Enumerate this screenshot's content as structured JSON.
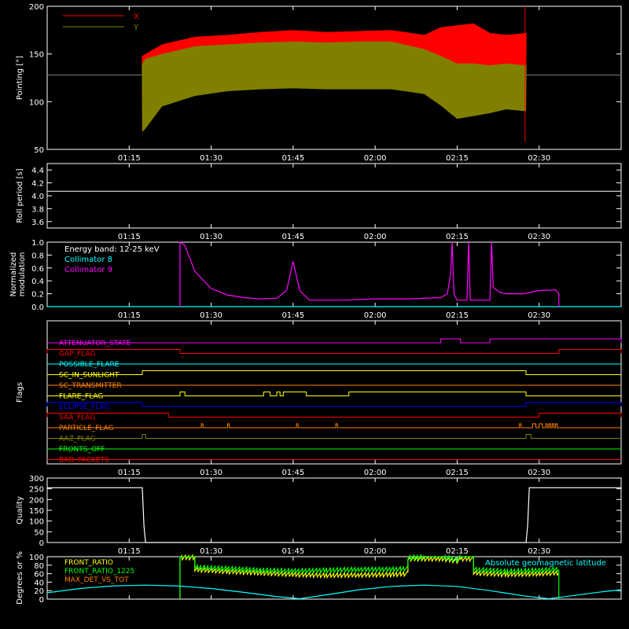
{
  "colors": {
    "background": "#000000",
    "foreground": "#ffffff",
    "red": "#ff0000",
    "olive": "#808000",
    "cyan": "#00ffff",
    "magenta": "#ff00ff",
    "yellow": "#ffff00",
    "orange": "#ff8000",
    "blue": "#0000ff",
    "green": "#00ff00",
    "gray": "#808080"
  },
  "time_axis": {
    "start_hours": 1.0,
    "end_hours": 2.75,
    "tick_labels": [
      "01:15",
      "01:30",
      "01:45",
      "02:00",
      "02:15",
      "02:30"
    ],
    "tick_hours": [
      1.25,
      1.5,
      1.75,
      2.0,
      2.25,
      2.5
    ]
  },
  "chart_data": [
    {
      "type": "line",
      "ylabel": "Pointing [°]",
      "ylim": [
        50,
        200
      ],
      "yticks": [
        50,
        100,
        150,
        200
      ],
      "legend": "top-left",
      "baseline": 128,
      "series": [
        {
          "name": "X",
          "color": "#ff0000",
          "x": [
            1.29,
            1.3,
            1.35,
            1.45,
            1.55,
            1.65,
            1.75,
            1.85,
            1.95,
            2.05,
            2.15,
            2.2,
            2.25,
            2.3,
            2.35,
            2.4,
            2.46
          ],
          "upper": [
            148,
            150,
            160,
            168,
            170,
            173,
            175,
            173,
            174,
            175,
            170,
            178,
            180,
            182,
            172,
            170,
            172
          ],
          "lower": [
            70,
            75,
            98,
            108,
            113,
            116,
            117,
            116,
            116,
            116,
            110,
            100,
            88,
            90,
            90,
            95,
            92
          ]
        },
        {
          "name": "Y",
          "color": "#808000",
          "x": [
            1.29,
            1.3,
            1.35,
            1.45,
            1.55,
            1.65,
            1.75,
            1.85,
            1.95,
            2.05,
            2.15,
            2.2,
            2.25,
            2.3,
            2.35,
            2.4,
            2.46
          ],
          "upper": [
            140,
            145,
            150,
            158,
            160,
            162,
            163,
            162,
            163,
            163,
            155,
            148,
            140,
            140,
            138,
            140,
            138
          ],
          "lower": [
            68,
            72,
            95,
            106,
            111,
            113,
            114,
            113,
            113,
            113,
            108,
            96,
            82,
            85,
            88,
            92,
            90
          ]
        }
      ]
    },
    {
      "type": "line",
      "ylabel": "Roll period [s]",
      "ylim": [
        3.5,
        4.5
      ],
      "yticks": [
        3.6,
        3.8,
        4.0,
        4.2,
        4.4
      ],
      "series": [
        {
          "name": "",
          "color": "#ffffff",
          "x": [
            1.0,
            2.75
          ],
          "y": [
            4.07,
            4.07
          ]
        }
      ]
    },
    {
      "type": "line",
      "ylabel": "Normalized modulation",
      "ylim": [
        0.0,
        1.0
      ],
      "yticks": [
        0.0,
        0.2,
        0.4,
        0.6,
        0.8,
        1.0
      ],
      "legend": "top-left",
      "annotation": "Energy band: 12-25 keV",
      "series": [
        {
          "name": "Collimator 8",
          "color": "#00ffff",
          "x": [
            1.0,
            2.75
          ],
          "y": [
            0.0,
            0.0
          ]
        },
        {
          "name": "Collimator 9",
          "color": "#ff00ff",
          "x": [
            1.405,
            1.405,
            1.42,
            1.45,
            1.5,
            1.55,
            1.6,
            1.65,
            1.7,
            1.73,
            1.75,
            1.77,
            1.8,
            1.9,
            2.0,
            2.1,
            2.2,
            2.22,
            2.23,
            2.235,
            2.24,
            2.25,
            2.28,
            2.285,
            2.29,
            2.3,
            2.35,
            2.355,
            2.36,
            2.38,
            2.4,
            2.45,
            2.5,
            2.55,
            2.56,
            2.56
          ],
          "y": [
            0.0,
            1.0,
            0.95,
            0.55,
            0.28,
            0.18,
            0.14,
            0.12,
            0.13,
            0.25,
            0.7,
            0.25,
            0.1,
            0.1,
            0.12,
            0.12,
            0.14,
            0.2,
            0.5,
            1.0,
            0.2,
            0.1,
            0.1,
            1.0,
            0.1,
            0.1,
            0.1,
            1.0,
            0.3,
            0.22,
            0.2,
            0.2,
            0.25,
            0.26,
            0.2,
            0.0
          ]
        }
      ]
    },
    {
      "type": "line",
      "ylabel": "Flags",
      "flags": [
        {
          "name": "ATTENUATOR_STATE",
          "color": "#ff00ff",
          "on": [
            [
              2.2,
              2.26
            ],
            [
              2.35,
              2.75
            ]
          ]
        },
        {
          "name": "GAP_FLAG",
          "color": "#ff0000",
          "on": [
            [
              1.0,
              1.405
            ],
            [
              2.56,
              2.75
            ]
          ]
        },
        {
          "name": "POSSIBLE_FLARE",
          "color": "#00ffff",
          "on": []
        },
        {
          "name": "SC_IN_SUNLIGHT",
          "color": "#ffff00",
          "on": [
            [
              1.29,
              2.46
            ]
          ]
        },
        {
          "name": "SC_TRANSMITTER",
          "color": "#ff8000",
          "on": []
        },
        {
          "name": "FLARE_FLAG",
          "color": "#ffff00",
          "on": [
            [
              1.405,
              1.42
            ],
            [
              1.66,
              1.68
            ],
            [
              1.7,
              1.71
            ],
            [
              1.72,
              1.79
            ],
            [
              1.92,
              2.46
            ]
          ]
        },
        {
          "name": "ECLIPSE_FLAG",
          "color": "#0000ff",
          "on": [
            [
              1.0,
              1.29
            ],
            [
              2.46,
              2.75
            ]
          ]
        },
        {
          "name": "SAA_FLAG",
          "color": "#ff0000",
          "on": [
            [
              1.0,
              1.37
            ],
            [
              2.5,
              2.75
            ]
          ]
        },
        {
          "name": "PARTICLE_FLAG",
          "color": "#ff8000",
          "on": [
            [
              1.47,
              1.475
            ],
            [
              1.55,
              1.555
            ],
            [
              1.76,
              1.765
            ],
            [
              1.88,
              1.885
            ],
            [
              2.44,
              2.445
            ],
            [
              2.48,
              2.49
            ],
            [
              2.5,
              2.51
            ],
            [
              2.52,
              2.525
            ],
            [
              2.53,
              2.535
            ],
            [
              2.54,
              2.545
            ],
            [
              2.55,
              2.555
            ]
          ]
        },
        {
          "name": "AAZ_FLAG",
          "color": "#808000",
          "on": [
            [
              1.29,
              1.3
            ],
            [
              2.46,
              2.475
            ]
          ]
        },
        {
          "name": "FRONTS_OFF",
          "color": "#00ff00",
          "on": []
        },
        {
          "name": "BAD_PACKETS",
          "color": "#ff0000",
          "on": []
        }
      ]
    },
    {
      "type": "line",
      "ylabel": "Quality",
      "ylim": [
        0,
        300
      ],
      "yticks": [
        0,
        50,
        100,
        150,
        200,
        250,
        300
      ],
      "series": [
        {
          "name": "",
          "color": "#ffffff",
          "x": [
            1.0,
            1.29,
            1.295,
            1.3,
            2.46,
            2.465,
            2.47,
            2.75
          ],
          "y": [
            255,
            255,
            80,
            0,
            0,
            80,
            255,
            255
          ]
        }
      ]
    },
    {
      "type": "line",
      "ylabel": "Degrees or %",
      "ylim": [
        0,
        100
      ],
      "yticks": [
        0,
        20,
        40,
        60,
        80,
        100
      ],
      "legend": "top-left",
      "annotation_right": "Absolute geomagnetic latitude",
      "series": [
        {
          "name": "FRONT_RATIO",
          "color": "#ffff00",
          "x": [
            1.405,
            1.405,
            1.45,
            1.45,
            1.55,
            1.65,
            1.75,
            1.85,
            1.95,
            2.05,
            2.1,
            2.1,
            2.2,
            2.25,
            2.26,
            2.3,
            2.3,
            2.4,
            2.5,
            2.56
          ],
          "y": [
            0,
            98,
            98,
            70,
            65,
            62,
            58,
            56,
            57,
            58,
            60,
            95,
            95,
            90,
            95,
            95,
            62,
            58,
            60,
            62
          ]
        },
        {
          "name": "FRONT_RATIO_1225",
          "color": "#00ff00",
          "x": [
            1.405,
            1.405,
            1.45,
            1.45,
            1.55,
            1.65,
            1.75,
            1.85,
            1.95,
            2.05,
            2.1,
            2.1,
            2.2,
            2.25,
            2.26,
            2.3,
            2.3,
            2.4,
            2.5,
            2.56,
            2.56
          ],
          "y": [
            0,
            100,
            100,
            75,
            72,
            68,
            66,
            68,
            70,
            70,
            72,
            98,
            100,
            93,
            100,
            100,
            70,
            65,
            68,
            70,
            0
          ]
        },
        {
          "name": "MAX_DET_VS_TOT",
          "color": "#ff8000",
          "x": [],
          "y": []
        },
        {
          "name": "",
          "color": "#00ffff",
          "x": [
            1.0,
            1.1,
            1.2,
            1.3,
            1.4,
            1.5,
            1.6,
            1.7,
            1.77,
            1.85,
            1.95,
            2.05,
            2.15,
            2.25,
            2.35,
            2.45,
            2.53,
            2.6,
            2.7,
            2.75
          ],
          "y": [
            15,
            25,
            31,
            33,
            31,
            25,
            16,
            6,
            1,
            10,
            22,
            30,
            33,
            30,
            20,
            8,
            1,
            8,
            18,
            22
          ]
        }
      ]
    }
  ]
}
